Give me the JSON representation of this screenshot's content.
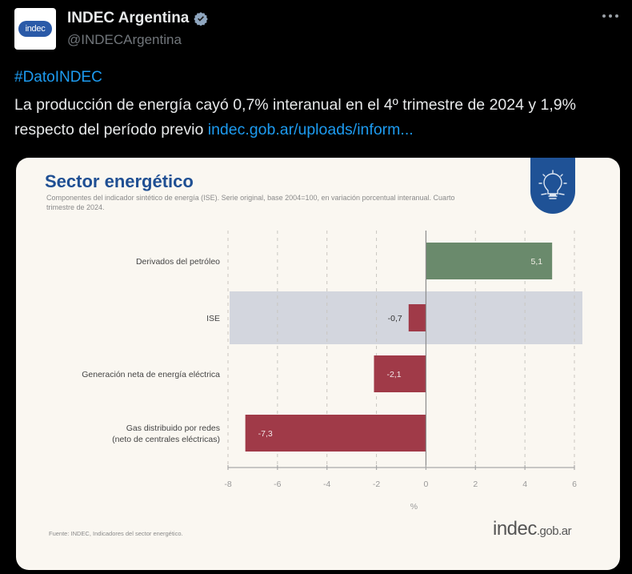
{
  "tweet": {
    "account_name": "INDEC Argentina",
    "handle": "@INDECArgentina",
    "avatar_text": "indec",
    "verified": true,
    "more_icon": "more-options-icon",
    "hashtag": "#DatoINDEC",
    "text": "La producción de energía cayó 0,7% interanual en el 4º trimestre de 2024 y 1,9% respecto del período previo",
    "link_text": "indec.gob.ar/uploads/inform..."
  },
  "card": {
    "title": "Sector energético",
    "subtitle": "Componentes del indicador sintético de energía (ISE). Serie original, base 2004=100, en variación porcentual interanual. Cuarto trimestre de 2024.",
    "badge_icon": "lightbulb-icon",
    "source": "Fuente: INDEC, Indicadores del sector energético.",
    "logo_main": "indec",
    "logo_suffix": ".gob.ar"
  },
  "colors": {
    "positive": "#6a8a6c",
    "negative": "#a03a48",
    "highlight_band": "#d3d6de",
    "title_blue": "#1f4f93",
    "link_blue": "#1d9bf0"
  },
  "chart_data": {
    "type": "bar",
    "orientation": "horizontal",
    "title": "Sector energético",
    "xlabel": "%",
    "ylabel": "",
    "xlim": [
      -8,
      6
    ],
    "xticks": [
      -8,
      -6,
      -4,
      -2,
      0,
      2,
      4,
      6
    ],
    "xtick_labels": [
      "-8",
      "-6",
      "-4",
      "-2",
      "0",
      "2",
      "4",
      "6"
    ],
    "grid": "vertical dashed",
    "highlighted_category": "ISE",
    "categories": [
      "Derivados del petróleo",
      "ISE",
      "Generación neta de energía eléctrica",
      "Gas distribuido por redes\n(neto de centrales eléctricas)"
    ],
    "category_lines": [
      [
        "Derivados del petróleo"
      ],
      [
        "ISE"
      ],
      [
        "Generación neta de energía eléctrica"
      ],
      [
        "Gas distribuido por redes",
        "(neto de centrales eléctricas)"
      ]
    ],
    "values": [
      5.1,
      -0.7,
      -2.1,
      -7.3
    ],
    "value_labels": [
      "5,1",
      "-0,7",
      "-2,1",
      "-7,3"
    ]
  }
}
